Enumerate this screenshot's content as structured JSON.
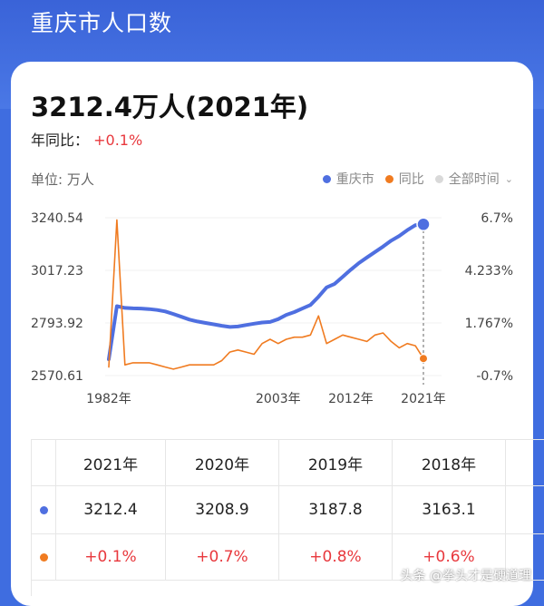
{
  "page": {
    "title": "重庆市人口数"
  },
  "summary": {
    "value": "3212.4万人(2021年)",
    "yoy_label": "年同比：",
    "yoy_value": "+0.1%"
  },
  "chart_header": {
    "unit_label": "单位: 万人",
    "legend": [
      {
        "name": "重庆市",
        "color": "#4f6fe0"
      },
      {
        "name": "同比",
        "color": "#f07b20"
      },
      {
        "name": "全部时间",
        "color": "#d9d9d9"
      }
    ]
  },
  "chart_data": {
    "type": "line",
    "x": [
      1982,
      1983,
      1984,
      1985,
      1986,
      1987,
      1988,
      1989,
      1990,
      1991,
      1992,
      1993,
      1994,
      1995,
      1996,
      1997,
      1998,
      1999,
      2000,
      2001,
      2002,
      2003,
      2004,
      2005,
      2006,
      2007,
      2008,
      2009,
      2010,
      2011,
      2012,
      2013,
      2014,
      2015,
      2016,
      2017,
      2018,
      2019,
      2020,
      2021
    ],
    "x_ticks": [
      "1982年",
      "2003年",
      "2012年",
      "2021年"
    ],
    "y_left_ticks": [
      "3240.54",
      "3017.23",
      "2793.92",
      "2570.61"
    ],
    "y_right_ticks": [
      "6.7%",
      "4.233%",
      "1.767%",
      "-0.7%"
    ],
    "ylim_left": [
      2570.61,
      3240.54
    ],
    "ylim_right": [
      -0.7,
      6.7
    ],
    "series": [
      {
        "name": "重庆市",
        "color": "#4f6fe0",
        "axis": "left",
        "values": [
          2640,
          2865,
          2858,
          2856,
          2855,
          2853,
          2849,
          2843,
          2832,
          2820,
          2808,
          2800,
          2794,
          2788,
          2782,
          2777,
          2779,
          2785,
          2791,
          2796,
          2798,
          2810,
          2828,
          2840,
          2855,
          2870,
          2905,
          2945,
          2960,
          2990,
          3020,
          3048,
          3072,
          3095,
          3118,
          3143,
          3163.1,
          3187.8,
          3208.9,
          3212.4
        ]
      },
      {
        "name": "同比",
        "color": "#f07b20",
        "axis": "right",
        "values": [
          -0.3,
          6.6,
          -0.2,
          -0.1,
          -0.1,
          -0.1,
          -0.2,
          -0.3,
          -0.4,
          -0.3,
          -0.2,
          -0.2,
          -0.2,
          -0.2,
          0.0,
          0.4,
          0.5,
          0.4,
          0.3,
          0.8,
          1.0,
          0.8,
          1.0,
          1.1,
          1.1,
          1.2,
          2.1,
          0.8,
          1.0,
          1.2,
          1.1,
          1.0,
          0.9,
          1.2,
          1.3,
          0.9,
          0.6,
          0.8,
          0.7,
          0.1
        ]
      }
    ]
  },
  "table": {
    "headers": [
      "2021年",
      "2020年",
      "2019年",
      "2018年"
    ],
    "rows": [
      {
        "series": "重庆市",
        "color": "#4f6fe0",
        "values": [
          "3212.4",
          "3208.9",
          "3187.8",
          "3163.1"
        ]
      },
      {
        "series": "同比",
        "color": "#f07b20",
        "values": [
          "+0.1%",
          "+0.7%",
          "+0.8%",
          "+0.6%"
        ]
      }
    ]
  },
  "watermark": "头条 @拳头才是硬道理"
}
